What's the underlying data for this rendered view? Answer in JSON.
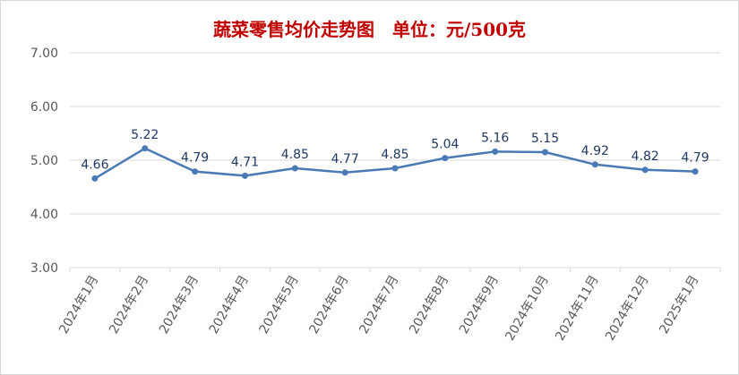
{
  "chart_data": {
    "type": "line",
    "title": "蔬菜零售均价走势图　单位：元/500克",
    "categories": [
      "2024年1月",
      "2024年2月",
      "2024年3月",
      "2024年4月",
      "2024年5月",
      "2024年6月",
      "2024年7月",
      "2024年8月",
      "2024年9月",
      "2024年10月",
      "2024年11月",
      "2024年12月",
      "2025年1月"
    ],
    "values": [
      4.66,
      5.22,
      4.79,
      4.71,
      4.85,
      4.77,
      4.85,
      5.04,
      5.16,
      5.15,
      4.92,
      4.82,
      4.79
    ],
    "value_labels": [
      "4.66",
      "5.22",
      "4.79",
      "4.71",
      "4.85",
      "4.77",
      "4.85",
      "5.04",
      "5.16",
      "5.15",
      "4.92",
      "4.82",
      "4.79"
    ],
    "ylim": [
      3.0,
      7.0
    ],
    "yticks": [
      "3.00",
      "4.00",
      "5.00",
      "6.00",
      "7.00"
    ],
    "grid": true,
    "legend": "none",
    "line_color": "#4a7ab5",
    "title_color": "#c00000"
  }
}
